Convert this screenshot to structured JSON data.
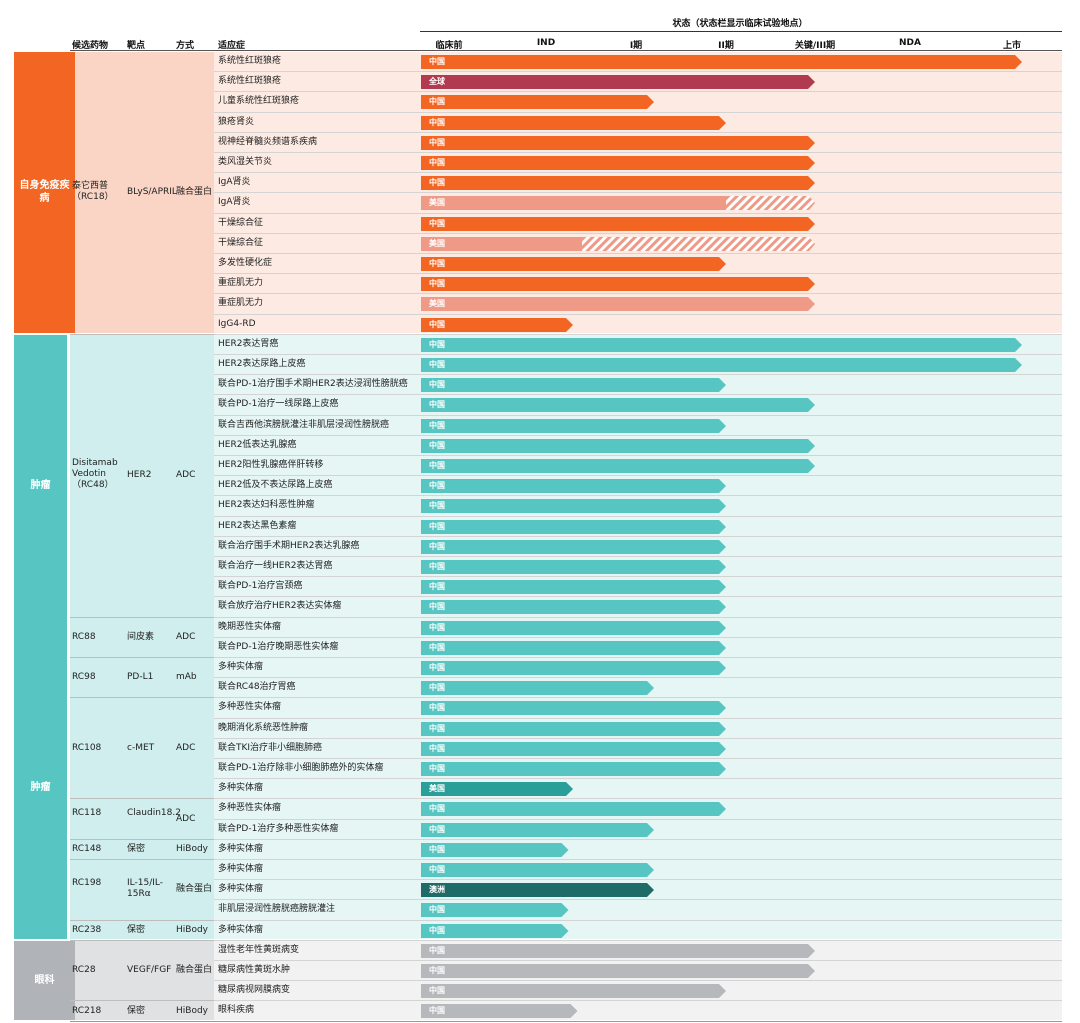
{
  "header": {
    "status_title": "状态（状态栏显示临床试验地点）",
    "col_drug": "候选药物",
    "col_target": "靶点",
    "col_modality": "方式",
    "col_indication": "适应症"
  },
  "colors": {
    "orange": "#f26522",
    "crimson": "#b23a50",
    "salmon": "#ee9a87",
    "teal": "#57c6c2",
    "teal_mid": "#2a9e98",
    "teal_dark": "#1f6b67",
    "gray": "#b6b8bc",
    "autoimmune_cat": "#f26522",
    "autoimmune_band": "#fdebe3",
    "autoimmune_drugband": "#fad4c4",
    "oncology_cat": "#57c6c2",
    "oncology_band": "#e6f6f5",
    "oncology_drugband": "#cfeeed",
    "ophth_cat": "#b0b3b8",
    "ophth_band": "#f2f2f3",
    "ophth_drugband": "#e0e1e3"
  },
  "chart_data": {
    "type": "table",
    "title": "状态（状态栏显示临床试验地点）",
    "stages": [
      "临床前",
      "IND",
      "I期",
      "II期",
      "关键/III期",
      "NDA",
      "上市"
    ],
    "categories": [
      {
        "name": "自身免疫疾病",
        "theme": "autoimmune",
        "rows": [
          0,
          13
        ]
      },
      {
        "name": "肿瘤",
        "theme": "oncology",
        "rows": [
          14,
          43
        ]
      },
      {
        "name": "眼科",
        "theme": "ophth",
        "rows": [
          44,
          47
        ]
      }
    ],
    "tumor_label_repeat": "肿瘤",
    "drugs": [
      {
        "drug": "泰它西普（RC18）",
        "target": "BLyS/APRIL",
        "modality": "融合蛋白",
        "rows": [
          0,
          13
        ]
      },
      {
        "drug": "Disitamab Vedotin（RC48）",
        "target": "HER2",
        "modality": "ADC",
        "rows": [
          14,
          27
        ]
      },
      {
        "drug": "RC88",
        "target": "间皮素",
        "modality": "ADC",
        "rows": [
          28,
          29
        ]
      },
      {
        "drug": "RC98",
        "target": "PD-L1",
        "modality": "mAb",
        "rows": [
          30,
          31
        ]
      },
      {
        "drug": "RC108",
        "target": "c-MET",
        "modality": "ADC",
        "rows": [
          32,
          36
        ]
      },
      {
        "drug": "RC118",
        "target": "Claudin18.2",
        "modality": "ADC",
        "rows": [
          37,
          38
        ]
      },
      {
        "drug": "RC148",
        "target": "保密",
        "modality": "HiBody",
        "rows": [
          39,
          39
        ]
      },
      {
        "drug": "RC198",
        "target": "IL-15/IL-15Rα",
        "modality": "融合蛋白",
        "rows": [
          40,
          42
        ]
      },
      {
        "drug": "RC238",
        "target": "保密",
        "modality": "HiBody",
        "rows": [
          43,
          43
        ]
      },
      {
        "drug": "RC28",
        "target": "VEGF/FGF",
        "modality": "融合蛋白",
        "rows": [
          44,
          46
        ]
      },
      {
        "drug": "RC218",
        "target": "保密",
        "modality": "HiBody",
        "rows": [
          47,
          47
        ]
      }
    ],
    "rows": [
      {
        "indication": "系统性红斑狼疮",
        "location": "中国",
        "stage_end": 6.0,
        "color": "orange"
      },
      {
        "indication": "系统性红斑狼疮",
        "location": "全球",
        "stage_end": 4.0,
        "color": "crimson"
      },
      {
        "indication": "儿童系统性红斑狼疮",
        "location": "中国",
        "stage_end": 2.2,
        "color": "orange"
      },
      {
        "indication": "狼疮肾炎",
        "location": "中国",
        "stage_end": 3.0,
        "color": "orange"
      },
      {
        "indication": "视神经脊髓炎频谱系疾病",
        "location": "中国",
        "stage_end": 4.0,
        "color": "orange"
      },
      {
        "indication": "类风湿关节炎",
        "location": "中国",
        "stage_end": 4.0,
        "color": "orange"
      },
      {
        "indication": "IgA肾炎",
        "location": "中国",
        "stage_end": 4.0,
        "color": "orange"
      },
      {
        "indication": "IgA肾炎",
        "location": "美国",
        "stage_end": 3.0,
        "hatch_end": 4.0,
        "color": "salmon"
      },
      {
        "indication": "干燥综合征",
        "location": "中国",
        "stage_end": 4.0,
        "color": "orange"
      },
      {
        "indication": "干燥综合征",
        "location": "美国",
        "stage_end": 1.4,
        "hatch_end": 4.0,
        "color": "salmon"
      },
      {
        "indication": "多发性硬化症",
        "location": "中国",
        "stage_end": 3.0,
        "color": "orange"
      },
      {
        "indication": "重症肌无力",
        "location": "中国",
        "stage_end": 4.0,
        "color": "orange"
      },
      {
        "indication": "重症肌无力",
        "location": "美国",
        "stage_end": 4.0,
        "color": "salmon"
      },
      {
        "indication": "IgG4-RD",
        "location": "中国",
        "stage_end": 1.3,
        "color": "orange"
      },
      {
        "indication": "HER2表达胃癌",
        "location": "中国",
        "stage_end": 6.0,
        "color": "teal"
      },
      {
        "indication": "HER2表达尿路上皮癌",
        "location": "中国",
        "stage_end": 6.0,
        "color": "teal"
      },
      {
        "indication": "联合PD-1治疗围手术期HER2表达浸润性膀胱癌",
        "location": "中国",
        "stage_end": 3.0,
        "color": "teal"
      },
      {
        "indication": "联合PD-1治疗一线尿路上皮癌",
        "location": "中国",
        "stage_end": 4.0,
        "color": "teal"
      },
      {
        "indication": "联合吉西他滨膀胱灌注非肌层浸润性膀胱癌",
        "location": "中国",
        "stage_end": 3.0,
        "color": "teal"
      },
      {
        "indication": "HER2低表达乳腺癌",
        "location": "中国",
        "stage_end": 4.0,
        "color": "teal"
      },
      {
        "indication": "HER2阳性乳腺癌伴肝转移",
        "location": "中国",
        "stage_end": 4.0,
        "color": "teal"
      },
      {
        "indication": "HER2低及不表达尿路上皮癌",
        "location": "中国",
        "stage_end": 3.0,
        "color": "teal"
      },
      {
        "indication": "HER2表达妇科恶性肿瘤",
        "location": "中国",
        "stage_end": 3.0,
        "color": "teal"
      },
      {
        "indication": "HER2表达黑色素瘤",
        "location": "中国",
        "stage_end": 3.0,
        "color": "teal"
      },
      {
        "indication": "联合治疗围手术期HER2表达乳腺癌",
        "location": "中国",
        "stage_end": 3.0,
        "color": "teal"
      },
      {
        "indication": "联合治疗一线HER2表达胃癌",
        "location": "中国",
        "stage_end": 3.0,
        "color": "teal"
      },
      {
        "indication": "联合PD-1治疗宫颈癌",
        "location": "中国",
        "stage_end": 3.0,
        "color": "teal"
      },
      {
        "indication": "联合放疗治疗HER2表达实体瘤",
        "location": "中国",
        "stage_end": 3.0,
        "color": "teal"
      },
      {
        "indication": "晚期恶性实体瘤",
        "location": "中国",
        "stage_end": 3.0,
        "color": "teal"
      },
      {
        "indication": "联合PD-1治疗晚期恶性实体瘤",
        "location": "中国",
        "stage_end": 3.0,
        "color": "teal"
      },
      {
        "indication": "多种实体瘤",
        "location": "中国",
        "stage_end": 3.0,
        "color": "teal"
      },
      {
        "indication": "联合RC48治疗胃癌",
        "location": "中国",
        "stage_end": 2.2,
        "color": "teal"
      },
      {
        "indication": "多种恶性实体瘤",
        "location": "中国",
        "stage_end": 3.0,
        "color": "teal"
      },
      {
        "indication": "晚期消化系统恶性肿瘤",
        "location": "中国",
        "stage_end": 3.0,
        "color": "teal"
      },
      {
        "indication": "联合TKI治疗非小细胞肺癌",
        "location": "中国",
        "stage_end": 3.0,
        "color": "teal"
      },
      {
        "indication": "联合PD-1治疗除非小细胞肺癌外的实体瘤",
        "location": "中国",
        "stage_end": 3.0,
        "color": "teal"
      },
      {
        "indication": "多种实体瘤",
        "location": "美国",
        "stage_end": 1.3,
        "color": "teal_mid"
      },
      {
        "indication": "多种恶性实体瘤",
        "location": "中国",
        "stage_end": 3.0,
        "color": "teal"
      },
      {
        "indication": "联合PD-1治疗多种恶性实体瘤",
        "location": "中国",
        "stage_end": 2.2,
        "color": "teal"
      },
      {
        "indication": "多种实体瘤",
        "location": "中国",
        "stage_end": 1.25,
        "color": "teal"
      },
      {
        "indication": "多种实体瘤",
        "location": "中国",
        "stage_end": 2.2,
        "color": "teal"
      },
      {
        "indication": "多种实体瘤",
        "location": "澳洲",
        "stage_end": 2.2,
        "color": "teal_dark"
      },
      {
        "indication": "非肌层浸润性膀胱癌膀胱灌注",
        "location": "中国",
        "stage_end": 1.25,
        "color": "teal"
      },
      {
        "indication": "多种实体瘤",
        "location": "中国",
        "stage_end": 1.25,
        "color": "teal"
      },
      {
        "indication": "湿性老年性黄斑病变",
        "location": "中国",
        "stage_end": 4.0,
        "color": "gray"
      },
      {
        "indication": "糖尿病性黄斑水肿",
        "location": "中国",
        "stage_end": 4.0,
        "color": "gray"
      },
      {
        "indication": "糖尿病视网膜病变",
        "location": "中国",
        "stage_end": 3.0,
        "color": "gray"
      },
      {
        "indication": "眼科疾病",
        "location": "中国",
        "stage_end": 1.35,
        "color": "gray"
      }
    ]
  }
}
